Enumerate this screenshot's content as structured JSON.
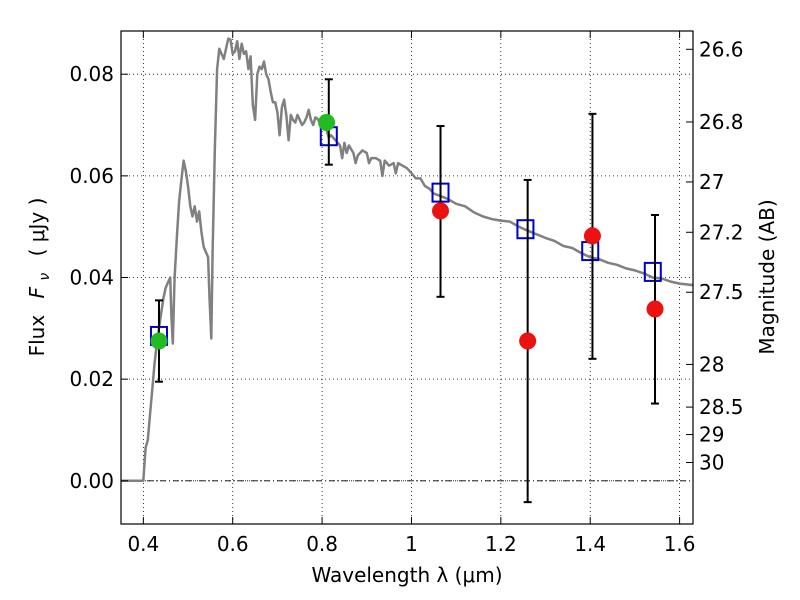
{
  "chart_data": {
    "type": "scatter",
    "xlabel": "Wavelength  λ (μm)",
    "ylabel_prefix": "Flux",
    "ylabel_symbol": "F",
    "ylabel_subscript": "ν",
    "ylabel_unit": "( μJy )",
    "y2label": "Magnitude (AB)",
    "xlim": [
      0.35,
      1.63
    ],
    "ylim": [
      -0.0085,
      0.0885
    ],
    "grid": true,
    "x_ticks": [
      0.4,
      0.6,
      0.8,
      1.0,
      1.2,
      1.4,
      1.6
    ],
    "x_tick_labels": [
      "0.4",
      "0.6",
      "0.8",
      "1",
      "1.2",
      "1.4",
      "1.6"
    ],
    "y_ticks": [
      0.0,
      0.02,
      0.04,
      0.06,
      0.08
    ],
    "y_tick_labels": [
      "0.00",
      "0.02",
      "0.04",
      "0.06",
      "0.08"
    ],
    "y2_ticks": [
      {
        "label": "26.6",
        "flux": 0.0849
      },
      {
        "label": "26.8",
        "flux": 0.0706
      },
      {
        "label": "27",
        "flux": 0.0588
      },
      {
        "label": "27.2",
        "flux": 0.0489
      },
      {
        "label": "27.5",
        "flux": 0.0371
      },
      {
        "label": "28",
        "flux": 0.0229
      },
      {
        "label": "28.5",
        "flux": 0.0145
      },
      {
        "label": "29",
        "flux": 0.0091
      },
      {
        "label": "30",
        "flux": 0.0036
      }
    ],
    "series": [
      {
        "kind": "line",
        "color": "#808080",
        "points": [
          [
            0.35,
            0.0
          ],
          [
            0.4,
            0.0
          ],
          [
            0.405,
            0.0065
          ],
          [
            0.41,
            0.008
          ],
          [
            0.415,
            0.013
          ],
          [
            0.42,
            0.018
          ],
          [
            0.425,
            0.023
          ],
          [
            0.43,
            0.027
          ],
          [
            0.435,
            0.03
          ],
          [
            0.44,
            0.033
          ],
          [
            0.445,
            0.036
          ],
          [
            0.45,
            0.038
          ],
          [
            0.455,
            0.039
          ],
          [
            0.46,
            0.04
          ],
          [
            0.463,
            0.032
          ],
          [
            0.466,
            0.027
          ],
          [
            0.47,
            0.04
          ],
          [
            0.475,
            0.048
          ],
          [
            0.48,
            0.055
          ],
          [
            0.485,
            0.059
          ],
          [
            0.49,
            0.063
          ],
          [
            0.495,
            0.061
          ],
          [
            0.5,
            0.058
          ],
          [
            0.505,
            0.054
          ],
          [
            0.51,
            0.052
          ],
          [
            0.515,
            0.054
          ],
          [
            0.52,
            0.051
          ],
          [
            0.525,
            0.053
          ],
          [
            0.53,
            0.049
          ],
          [
            0.535,
            0.046
          ],
          [
            0.54,
            0.045
          ],
          [
            0.545,
            0.044
          ],
          [
            0.548,
            0.036
          ],
          [
            0.552,
            0.028
          ],
          [
            0.555,
            0.045
          ],
          [
            0.56,
            0.065
          ],
          [
            0.565,
            0.081
          ],
          [
            0.57,
            0.085
          ],
          [
            0.575,
            0.084
          ],
          [
            0.58,
            0.083
          ],
          [
            0.585,
            0.085
          ],
          [
            0.59,
            0.087
          ],
          [
            0.595,
            0.0868
          ],
          [
            0.6,
            0.084
          ],
          [
            0.605,
            0.0845
          ],
          [
            0.61,
            0.0865
          ],
          [
            0.615,
            0.083
          ],
          [
            0.62,
            0.086
          ],
          [
            0.625,
            0.084
          ],
          [
            0.63,
            0.0845
          ],
          [
            0.635,
            0.081
          ],
          [
            0.64,
            0.0835
          ],
          [
            0.645,
            0.074
          ],
          [
            0.65,
            0.071
          ],
          [
            0.655,
            0.08
          ],
          [
            0.66,
            0.0815
          ],
          [
            0.665,
            0.081
          ],
          [
            0.67,
            0.0825
          ],
          [
            0.675,
            0.08
          ],
          [
            0.68,
            0.079
          ],
          [
            0.685,
            0.0765
          ],
          [
            0.69,
            0.0745
          ],
          [
            0.695,
            0.0745
          ],
          [
            0.7,
            0.0725
          ],
          [
            0.705,
            0.068
          ],
          [
            0.71,
            0.0735
          ],
          [
            0.715,
            0.075
          ],
          [
            0.72,
            0.072
          ],
          [
            0.725,
            0.067
          ],
          [
            0.73,
            0.072
          ],
          [
            0.735,
            0.071
          ],
          [
            0.74,
            0.0705
          ],
          [
            0.745,
            0.072
          ],
          [
            0.75,
            0.071
          ],
          [
            0.755,
            0.07
          ],
          [
            0.76,
            0.0705
          ],
          [
            0.765,
            0.0715
          ],
          [
            0.77,
            0.073
          ],
          [
            0.775,
            0.071
          ],
          [
            0.78,
            0.07
          ],
          [
            0.785,
            0.0715
          ],
          [
            0.79,
            0.0712
          ],
          [
            0.795,
            0.0705
          ],
          [
            0.8,
            0.0715
          ],
          [
            0.81,
            0.069
          ],
          [
            0.815,
            0.0675
          ],
          [
            0.82,
            0.068
          ],
          [
            0.83,
            0.067
          ],
          [
            0.84,
            0.066
          ],
          [
            0.845,
            0.0635
          ],
          [
            0.85,
            0.0665
          ],
          [
            0.855,
            0.0645
          ],
          [
            0.86,
            0.066
          ],
          [
            0.87,
            0.0645
          ],
          [
            0.875,
            0.0625
          ],
          [
            0.88,
            0.064
          ],
          [
            0.89,
            0.065
          ],
          [
            0.9,
            0.0645
          ],
          [
            0.905,
            0.0625
          ],
          [
            0.91,
            0.0635
          ],
          [
            0.92,
            0.0635
          ],
          [
            0.93,
            0.063
          ],
          [
            0.935,
            0.06
          ],
          [
            0.94,
            0.063
          ],
          [
            0.95,
            0.062
          ],
          [
            0.96,
            0.0625
          ],
          [
            0.965,
            0.0605
          ],
          [
            0.97,
            0.0625
          ],
          [
            0.98,
            0.062
          ],
          [
            0.99,
            0.0615
          ],
          [
            1.0,
            0.0605
          ],
          [
            1.01,
            0.0595
          ],
          [
            1.02,
            0.0595
          ],
          [
            1.03,
            0.058
          ],
          [
            1.04,
            0.0575
          ],
          [
            1.05,
            0.0565
          ],
          [
            1.06,
            0.0562
          ],
          [
            1.08,
            0.0555
          ],
          [
            1.1,
            0.0545
          ],
          [
            1.12,
            0.054
          ],
          [
            1.14,
            0.0528
          ],
          [
            1.16,
            0.052
          ],
          [
            1.18,
            0.0515
          ],
          [
            1.2,
            0.0512
          ],
          [
            1.22,
            0.051
          ],
          [
            1.24,
            0.05
          ],
          [
            1.26,
            0.0492
          ],
          [
            1.28,
            0.0485
          ],
          [
            1.3,
            0.0478
          ],
          [
            1.32,
            0.0472
          ],
          [
            1.34,
            0.0462
          ],
          [
            1.36,
            0.0458
          ],
          [
            1.38,
            0.0448
          ],
          [
            1.4,
            0.044
          ],
          [
            1.42,
            0.0436
          ],
          [
            1.44,
            0.0429
          ],
          [
            1.46,
            0.0425
          ],
          [
            1.48,
            0.0418
          ],
          [
            1.5,
            0.0414
          ],
          [
            1.52,
            0.0408
          ],
          [
            1.54,
            0.04
          ],
          [
            1.56,
            0.0398
          ],
          [
            1.58,
            0.0392
          ],
          [
            1.6,
            0.0388
          ],
          [
            1.63,
            0.0385
          ]
        ]
      },
      {
        "kind": "open-square",
        "color": "#0000cc",
        "points": [
          [
            0.435,
            0.0285
          ],
          [
            0.815,
            0.0678
          ],
          [
            1.065,
            0.0567
          ],
          [
            1.255,
            0.0495
          ],
          [
            1.4,
            0.0452
          ],
          [
            1.54,
            0.0411
          ]
        ]
      },
      {
        "kind": "filled-circle",
        "color": "#22bb22",
        "points": [
          [
            0.435,
            0.0275
          ],
          [
            0.81,
            0.0705
          ]
        ]
      },
      {
        "kind": "filled-circle",
        "color": "#ee1111",
        "points": [
          [
            1.065,
            0.0531
          ],
          [
            1.26,
            0.0275
          ],
          [
            1.405,
            0.0482
          ],
          [
            1.545,
            0.0338
          ]
        ]
      },
      {
        "kind": "errorbar",
        "color": "#000000",
        "points": [
          {
            "x": 0.435,
            "lo": 0.0195,
            "hi": 0.0355
          },
          {
            "x": 0.815,
            "lo": 0.0622,
            "hi": 0.079
          },
          {
            "x": 1.065,
            "lo": 0.0362,
            "hi": 0.0698
          },
          {
            "x": 1.26,
            "lo": -0.0042,
            "hi": 0.0592
          },
          {
            "x": 1.405,
            "lo": 0.024,
            "hi": 0.0722
          },
          {
            "x": 1.545,
            "lo": 0.0152,
            "hi": 0.0523
          }
        ]
      }
    ]
  }
}
